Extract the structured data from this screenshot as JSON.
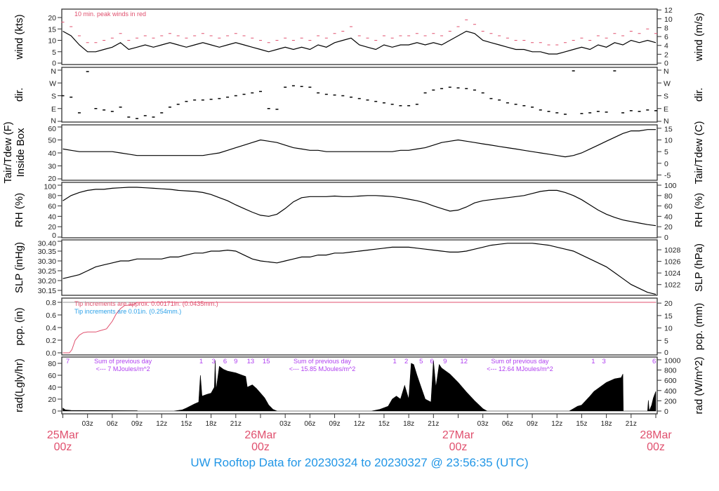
{
  "title": "UW Rooftop Data for 20230324  to  20230327 @ 23:56:35  (UTC)",
  "colors": {
    "title": "#2196e6",
    "red": "#e0506e",
    "blue": "#2aa0e8",
    "purple": "#b040f0",
    "line": "#000000"
  },
  "chart_data": [
    {
      "type": "line",
      "panel": "wind",
      "ylabel": "wind (kts)",
      "ylabel_right": "wind (m/s)",
      "yticks": [
        0,
        5,
        10,
        15,
        20
      ],
      "yticks_right": [
        0,
        2,
        4,
        6,
        8,
        10,
        12
      ],
      "annotation": "10 min. peak winds in red",
      "step_hours": 1,
      "series": [
        {
          "name": "wind",
          "values": [
            14,
            12,
            8,
            5,
            5,
            6,
            7,
            9,
            6,
            7,
            8,
            7,
            8,
            9,
            8,
            7,
            8,
            9,
            8,
            7,
            8,
            9,
            8,
            7,
            6,
            5,
            6,
            7,
            6,
            7,
            6,
            8,
            7,
            9,
            10,
            11,
            8,
            7,
            6,
            8,
            7,
            8,
            8,
            9,
            8,
            9,
            8,
            10,
            12,
            14,
            13,
            10,
            9,
            8,
            7,
            6,
            6,
            5,
            5,
            4,
            4,
            5,
            6,
            7,
            6,
            8,
            7,
            9,
            8,
            10,
            9,
            10,
            9
          ]
        },
        {
          "name": "10 min. peak winds",
          "values": [
            18,
            16,
            12,
            9,
            9,
            10,
            11,
            13,
            10,
            11,
            12,
            11,
            12,
            13,
            12,
            11,
            12,
            13,
            12,
            11,
            12,
            13,
            12,
            11,
            10,
            9,
            10,
            11,
            10,
            11,
            10,
            12,
            11,
            13,
            14,
            16,
            12,
            11,
            10,
            12,
            11,
            12,
            12,
            13,
            12,
            13,
            12,
            14,
            16,
            19,
            17,
            14,
            13,
            12,
            11,
            10,
            10,
            9,
            9,
            8,
            8,
            9,
            10,
            11,
            10,
            12,
            11,
            13,
            12,
            14,
            13,
            15,
            13
          ]
        }
      ]
    },
    {
      "type": "scatter",
      "panel": "dir",
      "ylabel": "dir.",
      "ylabel_right": "dir.",
      "yticks": [
        "N",
        "E",
        "S",
        "W",
        "N"
      ],
      "step_hours": 1,
      "values_deg": [
        180,
        170,
        60,
        350,
        90,
        80,
        70,
        100,
        30,
        20,
        40,
        30,
        60,
        100,
        120,
        140,
        150,
        150,
        155,
        160,
        170,
        180,
        190,
        200,
        210,
        90,
        85,
        240,
        250,
        245,
        240,
        200,
        190,
        185,
        180,
        170,
        160,
        150,
        140,
        130,
        120,
        110,
        110,
        120,
        200,
        220,
        230,
        240,
        235,
        230,
        220,
        200,
        160,
        150,
        130,
        120,
        110,
        100,
        80,
        70,
        60,
        50,
        355,
        55,
        60,
        70,
        65,
        355,
        60,
        75,
        70,
        80,
        75
      ]
    },
    {
      "type": "line",
      "panel": "temp",
      "ylabel": "Tair/Tdew (F)",
      "ylabel2": "Inside Box",
      "ylabel_right": "Tair/Tdew (C)",
      "yticks": [
        20,
        30,
        40,
        50,
        60
      ],
      "yticks_right": [
        -5,
        0,
        5,
        10,
        15
      ],
      "step_hours": 1,
      "values": [
        43,
        42,
        41,
        41,
        41,
        41,
        41,
        40,
        39,
        38,
        38,
        38,
        38,
        38,
        38,
        38,
        38,
        38,
        39,
        40,
        42,
        44,
        46,
        48,
        50,
        49,
        48,
        46,
        44,
        43,
        42,
        42,
        41,
        41,
        41,
        41,
        41,
        41,
        41,
        41,
        41,
        42,
        42,
        43,
        44,
        46,
        48,
        49,
        50,
        49,
        48,
        47,
        46,
        45,
        44,
        43,
        42,
        41,
        40,
        39,
        38,
        37,
        38,
        40,
        43,
        46,
        49,
        52,
        55,
        57,
        57,
        58,
        58
      ]
    },
    {
      "type": "line",
      "panel": "rh",
      "ylabel": "RH (%)",
      "ylabel_right": "RH (%)",
      "yticks": [
        0,
        20,
        40,
        60,
        80,
        100
      ],
      "yticks_right": [
        0,
        20,
        40,
        60,
        80,
        100
      ],
      "step_hours": 1,
      "values": [
        70,
        80,
        86,
        90,
        92,
        92,
        94,
        95,
        96,
        96,
        95,
        94,
        93,
        92,
        90,
        89,
        88,
        86,
        82,
        76,
        70,
        62,
        55,
        48,
        42,
        40,
        44,
        55,
        68,
        76,
        78,
        78,
        78,
        79,
        78,
        78,
        79,
        80,
        80,
        79,
        78,
        76,
        73,
        70,
        66,
        60,
        55,
        50,
        52,
        58,
        66,
        70,
        72,
        74,
        76,
        78,
        80,
        84,
        88,
        90,
        90,
        86,
        80,
        72,
        62,
        52,
        44,
        38,
        33,
        30,
        27,
        24,
        22
      ]
    },
    {
      "type": "line",
      "panel": "slp",
      "ylabel": "SLP (inHg)",
      "ylabel_right": "SLP (hPa)",
      "yticks": [
        "30.15",
        "30.20",
        "30.25",
        "30.30",
        "30.35",
        "30.40"
      ],
      "yticks_right": [
        1022,
        1024,
        1026,
        1028
      ],
      "step_hours": 1,
      "values": [
        30.21,
        30.22,
        30.23,
        30.25,
        30.27,
        30.28,
        30.29,
        30.3,
        30.3,
        30.31,
        30.31,
        30.31,
        30.31,
        30.32,
        30.32,
        30.33,
        30.34,
        30.34,
        30.35,
        30.35,
        30.355,
        30.35,
        30.33,
        30.31,
        30.3,
        30.295,
        30.29,
        30.3,
        30.31,
        30.32,
        30.32,
        30.33,
        30.33,
        30.34,
        30.34,
        30.345,
        30.35,
        30.355,
        30.36,
        30.365,
        30.37,
        30.37,
        30.37,
        30.365,
        30.36,
        30.355,
        30.35,
        30.345,
        30.345,
        30.35,
        30.36,
        30.37,
        30.38,
        30.385,
        30.39,
        30.39,
        30.39,
        30.39,
        30.385,
        30.38,
        30.37,
        30.36,
        30.35,
        30.33,
        30.31,
        30.29,
        30.27,
        30.24,
        30.21,
        30.18,
        30.16,
        30.14,
        30.13
      ]
    },
    {
      "type": "line",
      "panel": "pcp",
      "ylabel": "pcp. (in)",
      "ylabel_right": "pcp. (mm)",
      "yticks": [
        "0.0",
        "0.2",
        "0.4",
        "0.6",
        "0.8"
      ],
      "yticks_right": [
        0,
        5,
        10,
        15,
        20
      ],
      "annotation_red": "Tip increments are approx. 0.00171in. (0.0435mm.)",
      "annotation_blue": "Tip increments are 0.01in. (0.254mm.)",
      "points": [
        [
          0,
          0
        ],
        [
          0.8,
          0
        ],
        [
          1.1,
          0.05
        ],
        [
          1.5,
          0.2
        ],
        [
          2,
          0.28
        ],
        [
          2.5,
          0.32
        ],
        [
          3,
          0.33
        ],
        [
          4,
          0.33
        ],
        [
          4.5,
          0.35
        ],
        [
          5.3,
          0.38
        ],
        [
          6,
          0.5
        ],
        [
          6.5,
          0.62
        ],
        [
          7,
          0.7
        ],
        [
          7.5,
          0.75
        ],
        [
          8.5,
          0.76
        ],
        [
          9,
          0.8
        ],
        [
          72,
          0.8
        ]
      ],
      "gray_line_in": 0.8
    },
    {
      "type": "area",
      "panel": "rad",
      "ylabel": "rad(Lgly/hr)",
      "ylabel_right": "rad (W/m^2)",
      "yticks": [
        0,
        20,
        40,
        60,
        80
      ],
      "yticks_right": [
        0,
        200,
        400,
        600,
        800,
        1000
      ],
      "points": [
        [
          0,
          5
        ],
        [
          0.3,
          2
        ],
        [
          1,
          1
        ],
        [
          9,
          0.5
        ],
        [
          9.1,
          0
        ],
        [
          13.5,
          0
        ],
        [
          14.5,
          2
        ],
        [
          15,
          5
        ],
        [
          16,
          12
        ],
        [
          16.5,
          15
        ],
        [
          16.7,
          60
        ],
        [
          16.9,
          25
        ],
        [
          17.5,
          28
        ],
        [
          18,
          30
        ],
        [
          18.4,
          40
        ],
        [
          18.5,
          85
        ],
        [
          18.6,
          35
        ],
        [
          19,
          75
        ],
        [
          19.5,
          70
        ],
        [
          20,
          67
        ],
        [
          21,
          64
        ],
        [
          21.8,
          60
        ],
        [
          22.2,
          58
        ],
        [
          22.4,
          40
        ],
        [
          23,
          44
        ],
        [
          23.5,
          38
        ],
        [
          24,
          30
        ],
        [
          24.5,
          22
        ],
        [
          25,
          10
        ],
        [
          25.5,
          3
        ],
        [
          26,
          0
        ],
        [
          37.5,
          0
        ],
        [
          38.5,
          3
        ],
        [
          39.5,
          8
        ],
        [
          40,
          20
        ],
        [
          40.5,
          25
        ],
        [
          41,
          20
        ],
        [
          41.5,
          43
        ],
        [
          42,
          20
        ],
        [
          42.3,
          80
        ],
        [
          42.6,
          78
        ],
        [
          43,
          60
        ],
        [
          43.5,
          40
        ],
        [
          44,
          20
        ],
        [
          44.7,
          15
        ],
        [
          45,
          85
        ],
        [
          45.3,
          40
        ],
        [
          45.7,
          78
        ],
        [
          46,
          72
        ],
        [
          47,
          62
        ],
        [
          48,
          48
        ],
        [
          49,
          32
        ],
        [
          50,
          17
        ],
        [
          51,
          4
        ],
        [
          51.5,
          0
        ],
        [
          61.5,
          0
        ],
        [
          62,
          4
        ],
        [
          62.5,
          8
        ],
        [
          63,
          10
        ],
        [
          64,
          25
        ],
        [
          64.5,
          33
        ],
        [
          65,
          38
        ],
        [
          66,
          48
        ],
        [
          67,
          54
        ],
        [
          67.8,
          56
        ],
        [
          68,
          62
        ],
        [
          68.05,
          0
        ],
        [
          71,
          0
        ],
        [
          71.1,
          18
        ],
        [
          71.2,
          0
        ],
        [
          71.5,
          10
        ],
        [
          71.7,
          22
        ],
        [
          72,
          33
        ]
      ],
      "hour_labels": [
        {
          "t": 0.6,
          "label": "7"
        },
        {
          "t": 16.8,
          "label": "1"
        },
        {
          "t": 18.3,
          "label": "3"
        },
        {
          "t": 19.7,
          "label": "6"
        },
        {
          "t": 21.0,
          "label": "9"
        },
        {
          "t": 22.8,
          "label": "13"
        },
        {
          "t": 24.7,
          "label": "15"
        },
        {
          "t": 40.3,
          "label": "1"
        },
        {
          "t": 41.7,
          "label": "2"
        },
        {
          "t": 43.5,
          "label": "5"
        },
        {
          "t": 44.8,
          "label": "6"
        },
        {
          "t": 46.4,
          "label": "9"
        },
        {
          "t": 48.7,
          "label": "12"
        },
        {
          "t": 64.4,
          "label": "1"
        },
        {
          "t": 65.7,
          "label": "3"
        },
        {
          "t": 71.8,
          "label": "6"
        }
      ],
      "daily_sums": [
        {
          "t": 7.3,
          "line1": "Sum of previous day",
          "line2": "<--- 7 MJoules/m^2"
        },
        {
          "t": 31.5,
          "line1": "Sum of previous day",
          "line2": "<--- 15.85 MJoules/m^2"
        },
        {
          "t": 55.5,
          "line1": "Sum of previous day",
          "line2": "<--- 12.64 MJoules/m^2"
        }
      ]
    }
  ],
  "xaxis": {
    "hour_ticks": [
      "03z",
      "06z",
      "09z",
      "12z",
      "15z",
      "18z",
      "21z"
    ],
    "days": [
      {
        "t": 0,
        "line1": "25Mar",
        "line2": "00z"
      },
      {
        "t": 24,
        "line1": "26Mar",
        "line2": "00z"
      },
      {
        "t": 48,
        "line1": "27Mar",
        "line2": "00z"
      },
      {
        "t": 72,
        "line1": "28Mar",
        "line2": "00z"
      }
    ]
  }
}
